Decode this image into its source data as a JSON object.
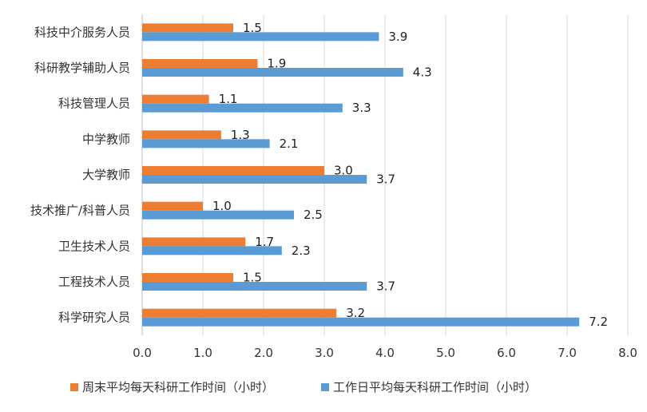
{
  "chart_data": {
    "type": "bar",
    "orientation": "horizontal",
    "categories": [
      "科技中介服务人员",
      "科研教学辅助人员",
      "科技管理人员",
      "中学教师",
      "大学教师",
      "技术推广/科普人员",
      "卫生技术人员",
      "工程技术人员",
      "科学研究人员"
    ],
    "series": [
      {
        "name": "周末平均每天科研工作时间（小时）",
        "color": "#ED7D31",
        "values": [
          1.5,
          1.9,
          1.1,
          1.3,
          3.0,
          1.0,
          1.7,
          1.5,
          3.2
        ]
      },
      {
        "name": "工作日平均每天科研工作时间（小时）",
        "color": "#5B9BD5",
        "values": [
          3.9,
          4.3,
          3.3,
          2.1,
          3.7,
          2.5,
          2.3,
          3.7,
          7.2
        ]
      }
    ],
    "xlim": [
      0,
      8
    ],
    "xticks": [
      "0.0",
      "1.0",
      "2.0",
      "3.0",
      "4.0",
      "5.0",
      "6.0",
      "7.0",
      "8.0"
    ],
    "grid": true,
    "legend_position": "bottom"
  }
}
